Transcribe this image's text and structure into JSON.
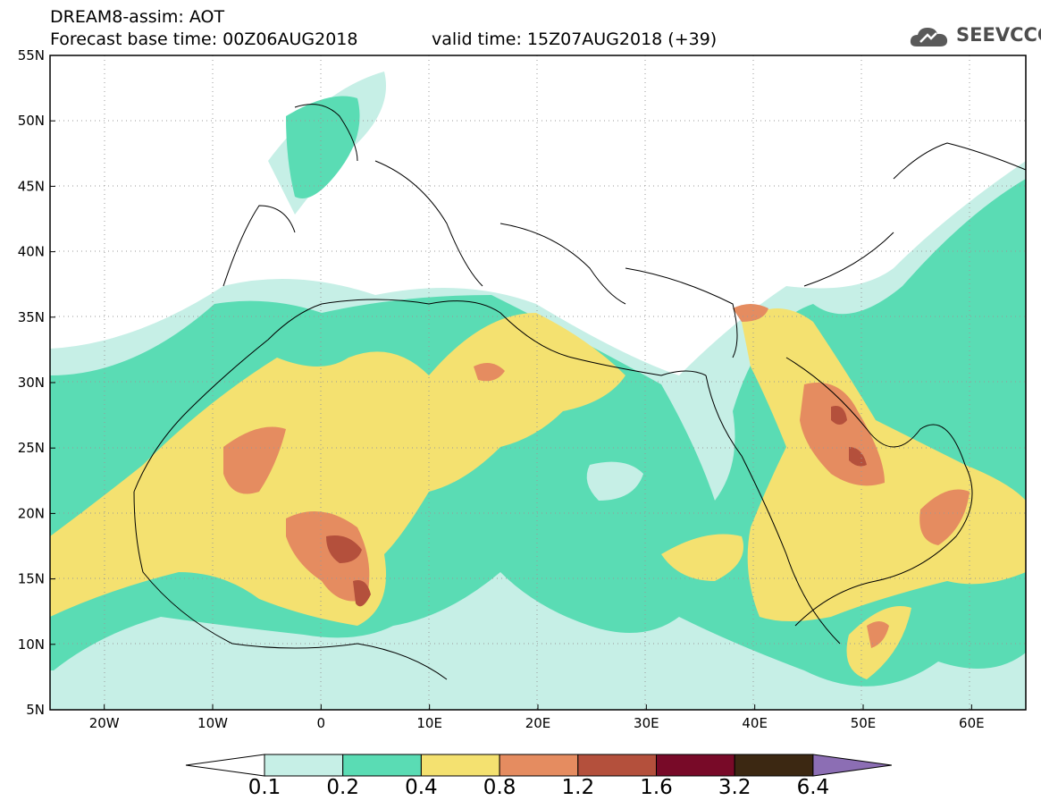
{
  "header": {
    "title": "DREAM8-assim: AOT",
    "base_time": "Forecast base time: 00Z06AUG2018",
    "valid_time": "valid time: 15Z07AUG2018 (+39)",
    "logo_text": "SEEVCCC"
  },
  "map": {
    "lon_range": [
      -25,
      65
    ],
    "lat_range": [
      5,
      55
    ],
    "lon_ticks": [
      "20W",
      "10W",
      "0",
      "10E",
      "20E",
      "30E",
      "40E",
      "50E",
      "60E"
    ],
    "lat_ticks": [
      "55N",
      "50N",
      "45N",
      "40N",
      "35N",
      "30N",
      "25N",
      "20N",
      "15N",
      "10N",
      "5N"
    ],
    "gridlines": "dotted"
  },
  "colorbar": {
    "levels": [
      "0.1",
      "0.2",
      "0.4",
      "0.8",
      "1.2",
      "1.6",
      "3.2",
      "6.4"
    ],
    "colors": [
      "#c6efe6",
      "#5adcb4",
      "#f4e170",
      "#e58c60",
      "#b4503c",
      "#780a28",
      "#3c2812",
      "#8c6eb4"
    ]
  }
}
